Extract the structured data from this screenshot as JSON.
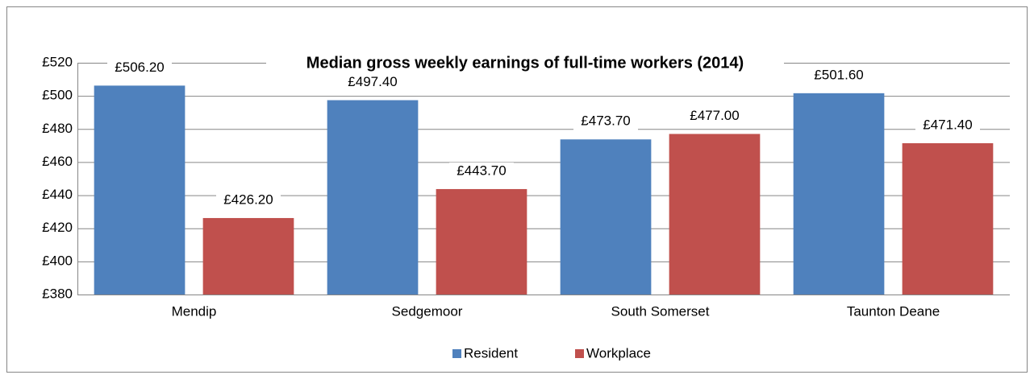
{
  "chart_data": {
    "type": "bar",
    "title": "Median gross weekly earnings of full-time workers (2014)",
    "categories": [
      "Mendip",
      "Sedgemoor",
      "South Somerset",
      "Taunton Deane"
    ],
    "series": [
      {
        "name": "Resident",
        "color": "#4f81bd",
        "values": [
          506.2,
          497.4,
          473.7,
          501.6
        ],
        "value_labels": [
          "£506.20",
          "£497.40",
          "£473.70",
          "£501.60"
        ]
      },
      {
        "name": "Workplace",
        "color": "#c0504d",
        "values": [
          426.2,
          443.7,
          477.0,
          471.4
        ],
        "value_labels": [
          "£426.20",
          "£443.70",
          "£477.00",
          "£471.40"
        ]
      }
    ],
    "ylim": [
      380,
      520
    ],
    "yticks": [
      {
        "value": 380,
        "label": "£380"
      },
      {
        "value": 400,
        "label": "£400"
      },
      {
        "value": 420,
        "label": "£420"
      },
      {
        "value": 440,
        "label": "£440"
      },
      {
        "value": 460,
        "label": "£460"
      },
      {
        "value": 480,
        "label": "£480"
      },
      {
        "value": 500,
        "label": "£500"
      },
      {
        "value": 520,
        "label": "£520"
      }
    ],
    "grid": true,
    "legend": "bottom"
  }
}
